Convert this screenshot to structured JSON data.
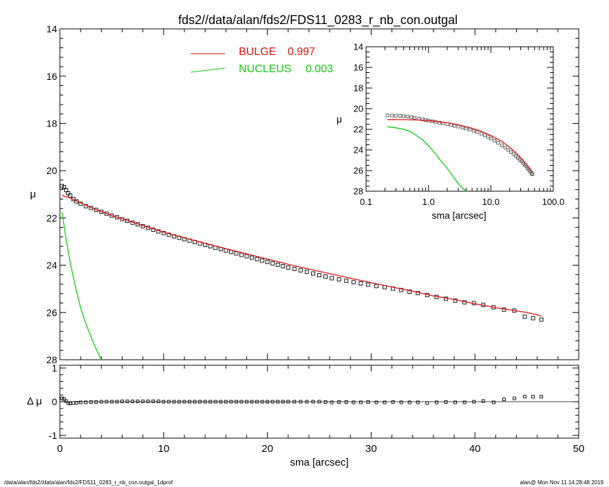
{
  "chart_data": [
    {
      "id": "main",
      "type": "scatter",
      "title": "fds2//data/alan/fds2/FDS11_0283_r_nb_con.outgal",
      "xlabel": "",
      "ylabel": "μ",
      "xlim": [
        0,
        50
      ],
      "ylim": [
        28,
        14
      ],
      "y_inverted": true,
      "xticks": [
        0,
        10,
        20,
        30,
        40,
        50
      ],
      "yticks": [
        14,
        16,
        18,
        20,
        22,
        24,
        26,
        28
      ],
      "legend_position": "top-center",
      "series": [
        {
          "name": "data",
          "style": "open-squares",
          "color": "#000000",
          "x": [
            0.2,
            0.4,
            0.6,
            0.8,
            1.0,
            1.3,
            1.6,
            2.0,
            2.5,
            3.0,
            3.5,
            4.0,
            4.5,
            5.0,
            5.5,
            6.0,
            6.5,
            7.0,
            7.5,
            8.0,
            8.5,
            9.0,
            9.5,
            10.0,
            10.5,
            11.0,
            11.5,
            12.0,
            12.5,
            13.0,
            13.5,
            14.0,
            14.5,
            15.0,
            15.5,
            16.0,
            16.5,
            17.0,
            17.5,
            18.0,
            18.5,
            19.0,
            19.5,
            20.0,
            20.5,
            21.0,
            21.5,
            22.0,
            22.6,
            23.2,
            23.8,
            24.4,
            25.0,
            25.6,
            26.2,
            26.9,
            27.6,
            28.3,
            29.0,
            29.7,
            30.5,
            31.3,
            32.1,
            32.9,
            33.7,
            34.5,
            35.4,
            36.3,
            37.2,
            38.1,
            39.0,
            39.9,
            40.8,
            41.8,
            42.8,
            43.8,
            44.8,
            45.6,
            46.4
          ],
          "y": [
            20.65,
            20.7,
            20.82,
            20.95,
            21.05,
            21.2,
            21.3,
            21.4,
            21.5,
            21.58,
            21.66,
            21.74,
            21.82,
            21.9,
            21.97,
            22.05,
            22.12,
            22.2,
            22.27,
            22.35,
            22.42,
            22.5,
            22.57,
            22.64,
            22.71,
            22.78,
            22.84,
            22.9,
            22.96,
            23.02,
            23.08,
            23.14,
            23.2,
            23.26,
            23.32,
            23.38,
            23.44,
            23.5,
            23.56,
            23.62,
            23.68,
            23.74,
            23.8,
            23.86,
            23.92,
            23.98,
            24.04,
            24.1,
            24.16,
            24.22,
            24.28,
            24.35,
            24.42,
            24.48,
            24.55,
            24.6,
            24.66,
            24.72,
            24.77,
            24.82,
            24.88,
            24.93,
            24.99,
            25.05,
            25.12,
            25.18,
            25.26,
            25.34,
            25.42,
            25.5,
            25.57,
            25.6,
            25.68,
            25.78,
            25.88,
            25.92,
            26.18,
            26.24,
            26.3
          ]
        },
        {
          "name": "BULGE",
          "value_label": "0.997",
          "style": "line",
          "color": "#e01010",
          "x": [
            0.2,
            1,
            2,
            3,
            4,
            5,
            6,
            7,
            8,
            9,
            10,
            12,
            14,
            16,
            18,
            20,
            22,
            24,
            26,
            28,
            30,
            32,
            34,
            36,
            38,
            40,
            42,
            44,
            45,
            46,
            46.4
          ],
          "y": [
            21.05,
            21.15,
            21.36,
            21.56,
            21.74,
            21.9,
            22.04,
            22.18,
            22.32,
            22.46,
            22.6,
            22.84,
            23.07,
            23.3,
            23.52,
            23.74,
            23.96,
            24.16,
            24.36,
            24.55,
            24.74,
            24.92,
            25.1,
            25.3,
            25.45,
            25.63,
            25.8,
            25.93,
            26.0,
            26.1,
            26.15
          ]
        },
        {
          "name": "NUCLEUS",
          "value_label": "0.003",
          "style": "line",
          "color": "#10cc10",
          "x": [
            0.2,
            0.4,
            0.6,
            0.8,
            1.0,
            1.3,
            1.6,
            2.0,
            2.4,
            2.8,
            3.2,
            3.6,
            4.0
          ],
          "y": [
            21.75,
            22.3,
            22.9,
            23.4,
            23.9,
            24.5,
            25.1,
            25.8,
            26.35,
            26.8,
            27.25,
            27.65,
            28.0
          ]
        }
      ]
    },
    {
      "id": "inset",
      "type": "line",
      "xlabel": "sma [arcsec]",
      "ylabel": "μ",
      "x_scale": "log",
      "xlim": [
        0.1,
        100.0
      ],
      "ylim": [
        28,
        14
      ],
      "y_inverted": true,
      "xtick_labels": [
        "0.1",
        "1.0",
        "10.0",
        "100.0"
      ],
      "xticks": [
        0.1,
        1.0,
        10.0,
        100.0
      ],
      "yticks": [
        14,
        16,
        18,
        20,
        22,
        24,
        26,
        28
      ],
      "series": [
        {
          "name": "data",
          "style": "open-squares",
          "color": "#555555",
          "x": [
            0.22,
            0.26,
            0.3,
            0.35,
            0.4,
            0.46,
            0.53,
            0.6,
            0.7,
            0.8,
            0.9,
            1.0,
            1.15,
            1.3,
            1.5,
            1.7,
            2.0,
            2.3,
            2.6,
            3.0,
            3.5,
            4.0,
            4.6,
            5.3,
            6.0,
            7.0,
            8.0,
            9.0,
            10.0,
            11.5,
            13,
            15,
            17,
            19,
            21,
            23,
            25,
            27,
            29,
            31,
            33,
            35,
            37,
            39,
            41,
            43,
            45,
            46.5
          ],
          "y": [
            20.65,
            20.66,
            20.68,
            20.7,
            20.73,
            20.77,
            20.82,
            20.88,
            20.96,
            21.04,
            21.1,
            21.15,
            21.22,
            21.28,
            21.36,
            21.42,
            21.5,
            21.58,
            21.66,
            21.74,
            21.84,
            21.92,
            22.02,
            22.14,
            22.26,
            22.42,
            22.58,
            22.74,
            22.9,
            23.1,
            23.3,
            23.55,
            23.78,
            24.0,
            24.2,
            24.4,
            24.6,
            24.78,
            24.95,
            25.1,
            25.28,
            25.45,
            25.6,
            25.78,
            25.95,
            26.1,
            26.3,
            26.35
          ]
        },
        {
          "name": "BULGE",
          "style": "line",
          "color": "#e01010",
          "x": [
            0.22,
            0.4,
            0.7,
            1.0,
            1.5,
            2.0,
            3.0,
            5.0,
            7.0,
            10.0,
            15,
            20,
            25,
            30,
            35,
            40,
            46.5
          ],
          "y": [
            21.05,
            21.06,
            21.1,
            21.15,
            21.28,
            21.36,
            21.56,
            21.9,
            22.18,
            22.6,
            23.18,
            23.74,
            24.26,
            24.74,
            25.2,
            25.63,
            26.15
          ]
        },
        {
          "name": "NUCLEUS",
          "style": "line",
          "color": "#10cc10",
          "x": [
            0.22,
            0.3,
            0.4,
            0.5,
            0.6,
            0.8,
            1.0,
            1.3,
            1.6,
            2.0,
            2.5,
            3.0,
            3.5,
            4.0
          ],
          "y": [
            21.75,
            21.85,
            22.0,
            22.2,
            22.5,
            23.0,
            23.6,
            24.4,
            25.1,
            25.8,
            26.6,
            27.25,
            27.7,
            28.0
          ]
        }
      ]
    },
    {
      "id": "residual",
      "type": "scatter",
      "xlabel": "sma [arcsec]",
      "ylabel": "Δ μ",
      "xlim": [
        0,
        50
      ],
      "ylim": [
        -1,
        1
      ],
      "xticks": [
        0,
        10,
        20,
        30,
        40,
        50
      ],
      "yticks": [
        -1,
        0,
        1
      ],
      "series": [
        {
          "name": "residual",
          "style": "open-squares",
          "color": "#000000",
          "x": [
            0.2,
            0.4,
            0.6,
            0.8,
            1.0,
            1.3,
            1.6,
            2.0,
            2.5,
            3.0,
            3.5,
            4.0,
            4.5,
            5.0,
            5.5,
            6.0,
            6.5,
            7.0,
            7.5,
            8.0,
            8.5,
            9.0,
            9.5,
            10.0,
            10.5,
            11.0,
            11.5,
            12.0,
            12.5,
            13.0,
            13.5,
            14.0,
            14.5,
            15.0,
            15.5,
            16.0,
            16.5,
            17.0,
            17.5,
            18.0,
            18.5,
            19.0,
            19.5,
            20.0,
            20.5,
            21.0,
            21.5,
            22.0,
            22.6,
            23.2,
            23.8,
            24.4,
            25.0,
            25.6,
            26.2,
            26.9,
            27.6,
            28.3,
            29.0,
            29.7,
            30.5,
            31.3,
            32.1,
            32.9,
            33.7,
            34.5,
            35.4,
            36.3,
            37.2,
            38.1,
            39.0,
            39.9,
            40.8,
            41.8,
            42.8,
            43.8,
            44.8,
            45.6,
            46.4
          ],
          "y": [
            0.1,
            0.08,
            0.02,
            -0.04,
            -0.05,
            -0.04,
            -0.03,
            -0.02,
            -0.02,
            -0.01,
            -0.01,
            0.0,
            0.0,
            0.0,
            0.0,
            0.01,
            0.01,
            0.01,
            0.01,
            0.01,
            0.01,
            0.01,
            0.01,
            0.0,
            0.0,
            0.0,
            0.0,
            0.0,
            0.0,
            0.0,
            0.0,
            0.0,
            0.0,
            0.0,
            0.0,
            0.0,
            0.0,
            0.0,
            0.0,
            0.0,
            0.0,
            0.0,
            0.0,
            0.0,
            0.0,
            0.0,
            0.0,
            0.0,
            0.0,
            0.0,
            0.0,
            0.0,
            0.0,
            -0.01,
            -0.02,
            -0.01,
            -0.01,
            -0.02,
            -0.02,
            -0.01,
            -0.02,
            -0.02,
            -0.01,
            -0.02,
            -0.02,
            -0.02,
            -0.04,
            -0.02,
            -0.01,
            -0.02,
            -0.02,
            0.0,
            0.02,
            -0.02,
            0.07,
            0.1,
            0.15,
            0.15,
            0.15
          ]
        }
      ]
    }
  ],
  "footer": {
    "left": "/data/alan/fds2//data/alan/fds2/FDS11_0283_r_nb_con.outgal_1dprof",
    "right": "alan@  Mon Nov 11 14:28:48 2019"
  }
}
